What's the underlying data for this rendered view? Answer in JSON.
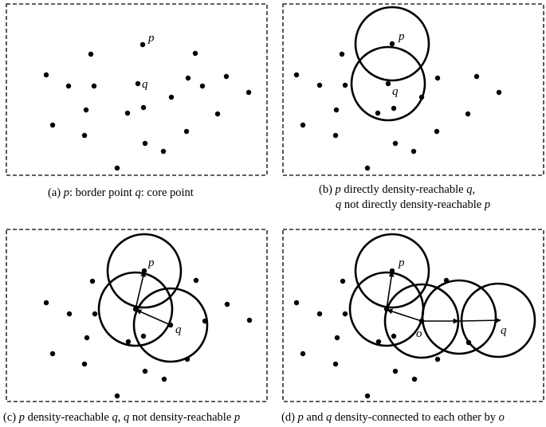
{
  "point_labels": {
    "p": "p",
    "q": "q",
    "o": "o"
  },
  "captions": {
    "a": {
      "prefix": "(a) ",
      "v1": "p",
      "t1": ": border point ",
      "v2": "q",
      "t2": ": core point"
    },
    "b": {
      "line1": {
        "prefix": "(b) ",
        "v1": "p",
        "t1": " directly density-reachable ",
        "v2": "q",
        "t2": ","
      },
      "line2": {
        "v1": "q",
        "t1": " not directly density-reachable ",
        "v2": "p"
      }
    },
    "c": {
      "prefix": "(c) ",
      "v1": "p",
      "t1": " density-reachable ",
      "v2": "q",
      "t2": ", ",
      "v3": "q",
      "t3": " not density-reachable ",
      "v4": "p"
    },
    "d": {
      "prefix": "(d) ",
      "v1": "p",
      "t1": " and ",
      "v2": "q",
      "t2": " density-connected to each other by ",
      "v3": "o"
    }
  }
}
